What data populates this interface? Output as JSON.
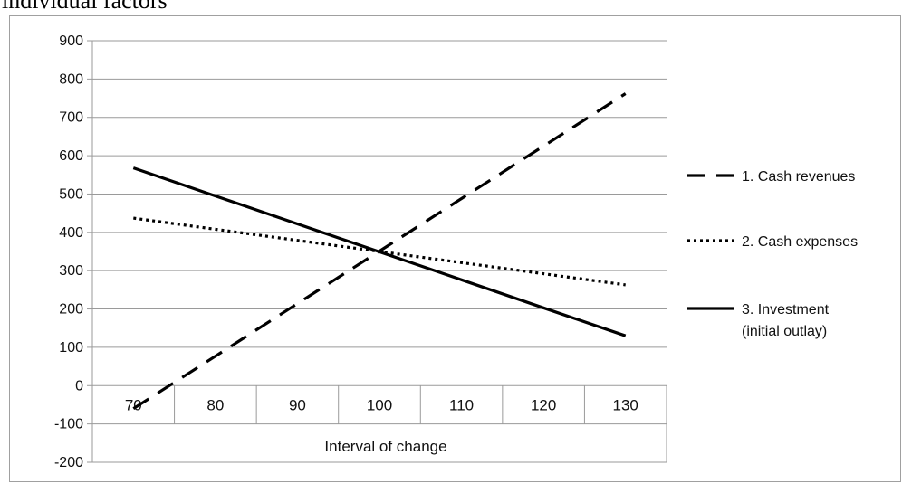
{
  "caption": "individual factors",
  "chart_data": {
    "type": "line",
    "x": [
      70,
      80,
      90,
      100,
      110,
      120,
      130
    ],
    "categories": [
      "70",
      "80",
      "90",
      "100",
      "110",
      "120",
      "130"
    ],
    "xlabel": "Interval of change",
    "ylabel": "",
    "ylim": [
      -200,
      900
    ],
    "yticks": [
      -200,
      -100,
      0,
      100,
      200,
      300,
      400,
      500,
      600,
      700,
      800,
      900
    ],
    "grid": true,
    "legend_position": "right",
    "series": [
      {
        "name": "1. Cash revenues",
        "style": "dashed",
        "color": "#000000",
        "values": [
          -60,
          77,
          214,
          351,
          488,
          625,
          762
        ]
      },
      {
        "name": "2. Cash expenses",
        "style": "dotted",
        "color": "#000000",
        "values": [
          437,
          408,
          379,
          350,
          321,
          292,
          263
        ]
      },
      {
        "name": "3. Investment (initial outlay)",
        "name_lines": [
          "3. Investment",
          "(initial outlay)"
        ],
        "style": "solid",
        "color": "#000000",
        "values": [
          568,
          495,
          422,
          349,
          276,
          203,
          130
        ]
      }
    ]
  }
}
